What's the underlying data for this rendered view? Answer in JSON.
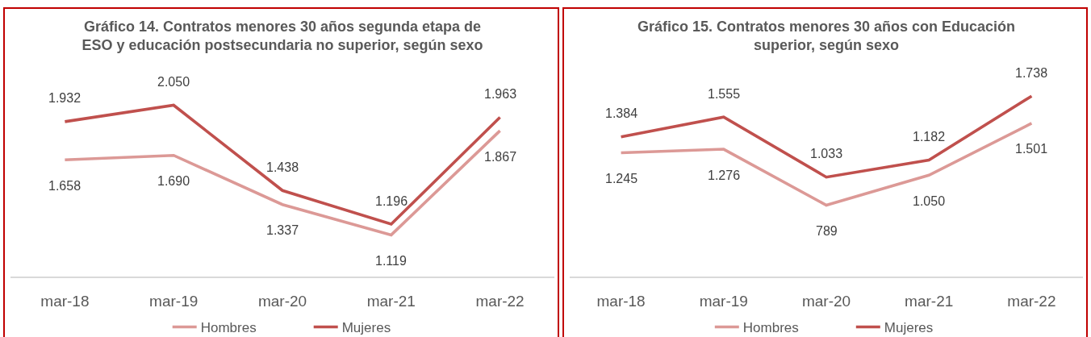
{
  "chart_data": [
    {
      "type": "line",
      "title": "Gráfico 14. Contratos menores 30 años segunda etapa de ESO y educación postsecundaria no superior, según sexo",
      "categories": [
        "mar-18",
        "mar-19",
        "mar-20",
        "mar-21",
        "mar-22"
      ],
      "series": [
        {
          "name": "Hombres",
          "color": "#dc9996",
          "values": [
            1658,
            1690,
            1337,
            1119,
            1867
          ],
          "value_labels": [
            "1.658",
            "1.690",
            "1.337",
            "1.119",
            "1.867"
          ]
        },
        {
          "name": "Mujeres",
          "color": "#c0504d",
          "values": [
            1932,
            2050,
            1438,
            1196,
            1963
          ],
          "value_labels": [
            "1.932",
            "2.050",
            "1.438",
            "1.196",
            "1.963"
          ]
        }
      ],
      "legend": "bottom"
    },
    {
      "type": "line",
      "title": "Gráfico 15. Contratos menores 30 años con Educación superior, según sexo",
      "categories": [
        "mar-18",
        "mar-19",
        "mar-20",
        "mar-21",
        "mar-22"
      ],
      "series": [
        {
          "name": "Hombres",
          "color": "#dc9996",
          "values": [
            1245,
            1276,
            789,
            1050,
            1501
          ],
          "value_labels": [
            "1.245",
            "1.276",
            "789",
            "1.050",
            "1.501"
          ]
        },
        {
          "name": "Mujeres",
          "color": "#c0504d",
          "values": [
            1384,
            1555,
            1033,
            1182,
            1738
          ],
          "value_labels": [
            "1.384",
            "1.555",
            "1.033",
            "1.182",
            "1.738"
          ]
        }
      ],
      "legend": "bottom"
    }
  ]
}
